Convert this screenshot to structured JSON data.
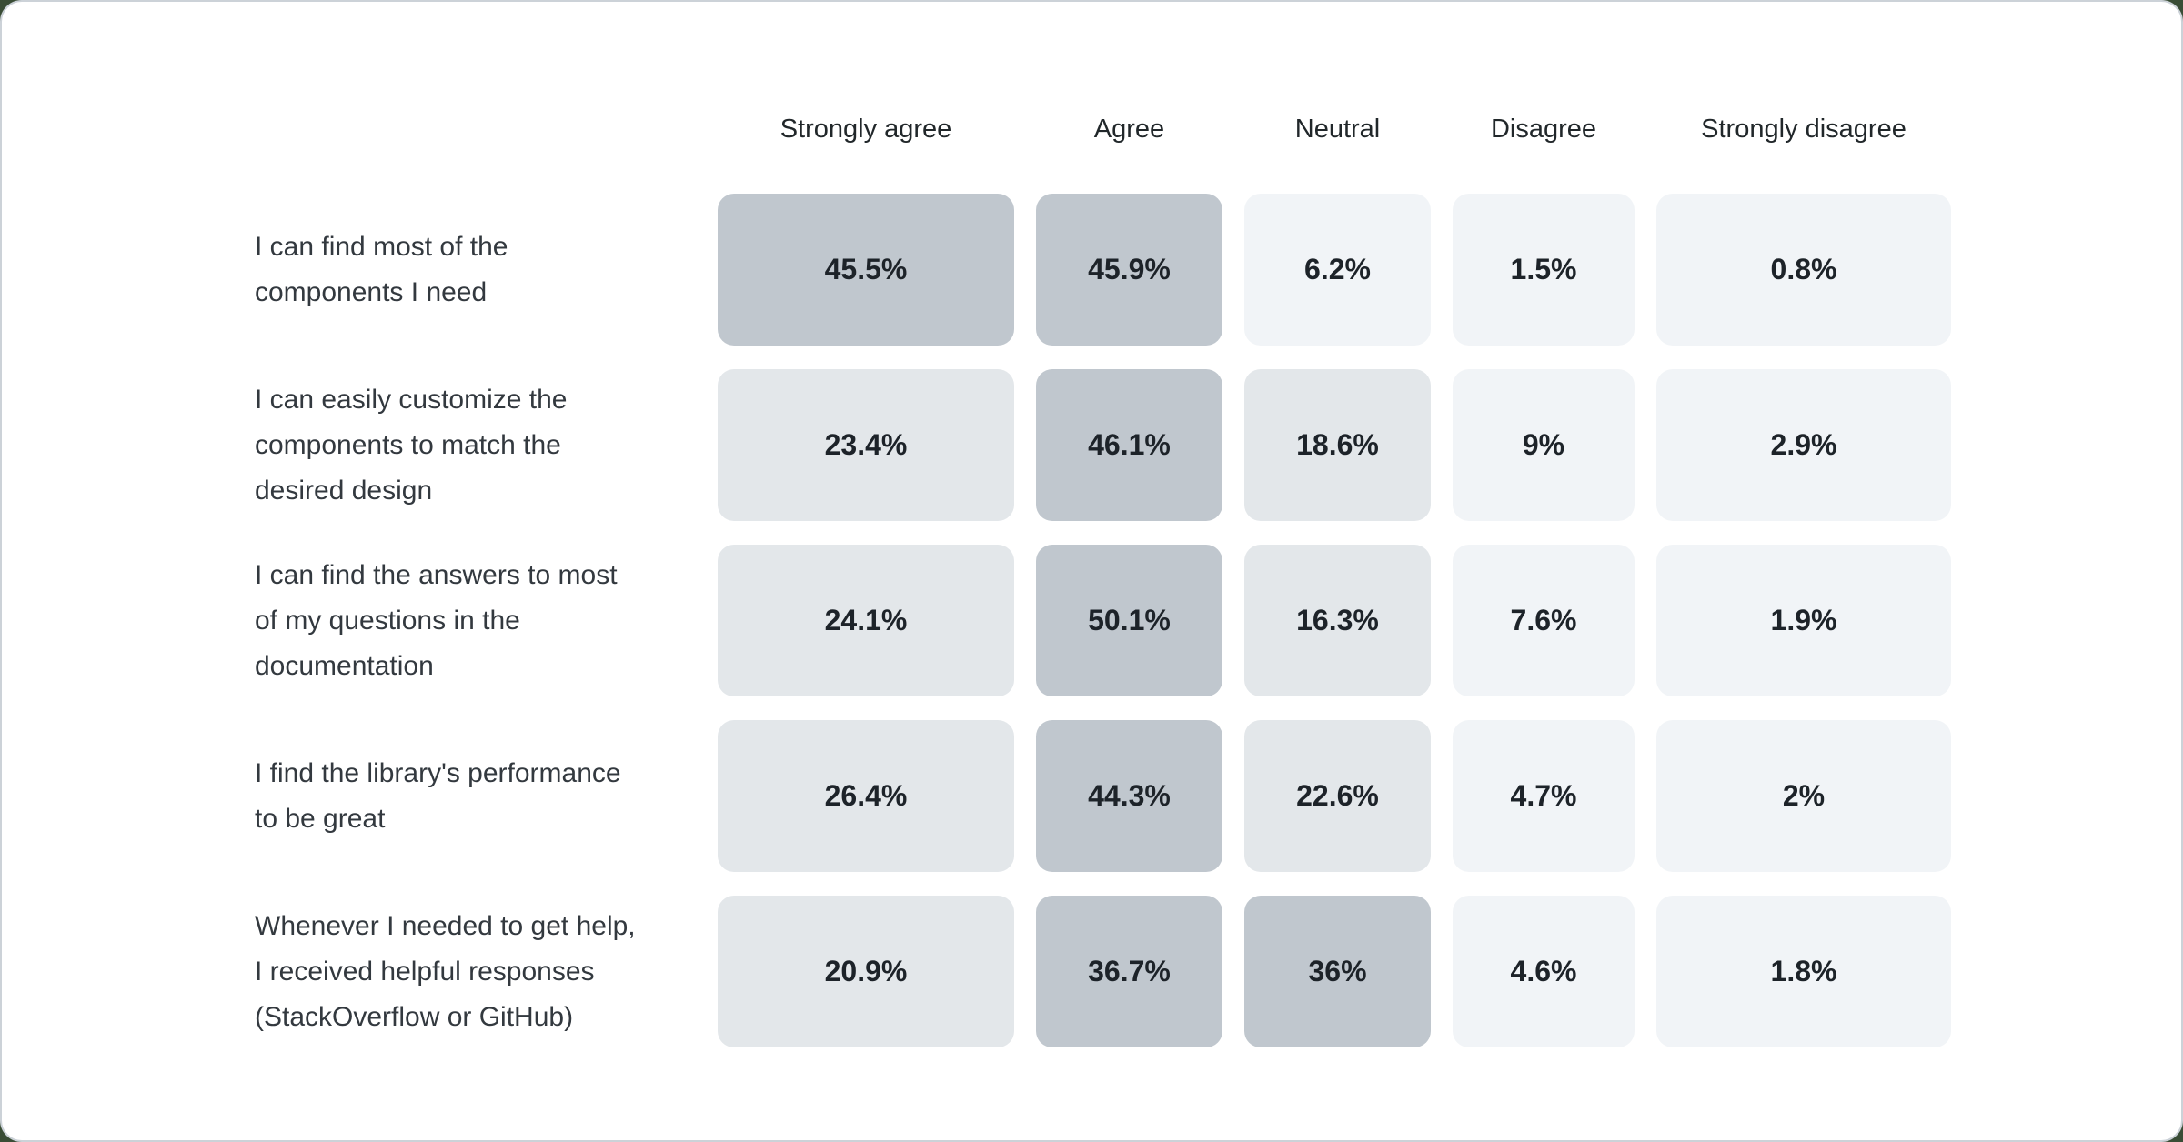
{
  "page": {
    "background": "#3a4d36",
    "card_background": "#ffffff",
    "card_border": "#ccd2d8"
  },
  "chart_data": {
    "type": "heatmap",
    "title": "",
    "unit": "%",
    "columns": [
      "Strongly agree",
      "Agree",
      "Neutral",
      "Disagree",
      "Strongly disagree"
    ],
    "rows": [
      {
        "label": "I can find most of the\ncomponents I need",
        "values": [
          45.5,
          45.9,
          6.2,
          1.5,
          0.8
        ],
        "display": [
          "45.5%",
          "45.9%",
          "6.2%",
          "1.5%",
          "0.8%"
        ]
      },
      {
        "label": "I can easily customize the\ncomponents to match the\ndesired design",
        "values": [
          23.4,
          46.1,
          18.6,
          9,
          2.9
        ],
        "display": [
          "23.4%",
          "46.1%",
          "18.6%",
          "9%",
          "2.9%"
        ]
      },
      {
        "label": "I can find the answers to most\nof my questions in the\ndocumentation",
        "values": [
          24.1,
          50.1,
          16.3,
          7.6,
          1.9
        ],
        "display": [
          "24.1%",
          "50.1%",
          "16.3%",
          "7.6%",
          "1.9%"
        ]
      },
      {
        "label": "I find the library's performance\nto be great",
        "values": [
          26.4,
          44.3,
          22.6,
          4.7,
          2
        ],
        "display": [
          "26.4%",
          "44.3%",
          "22.6%",
          "4.7%",
          "2%"
        ]
      },
      {
        "label": "Whenever I needed to get help,\nI received helpful responses\n(StackOverflow or GitHub)",
        "values": [
          20.9,
          36.7,
          36,
          4.6,
          1.8
        ],
        "display": [
          "20.9%",
          "36.7%",
          "36%",
          "4.6%",
          "1.8%"
        ]
      }
    ],
    "color_scale": {
      "thresholds": [
        10,
        30
      ],
      "colors": [
        "#f1f4f7",
        "#e3e7ea",
        "#c0c7ce"
      ],
      "value_text_color": "#1d2329",
      "header_text_color": "#21272a",
      "label_text_color": "#33393f"
    },
    "layout": {
      "grid": "off",
      "legend": "none",
      "column_header_position": "top",
      "row_label_position": "left"
    }
  }
}
